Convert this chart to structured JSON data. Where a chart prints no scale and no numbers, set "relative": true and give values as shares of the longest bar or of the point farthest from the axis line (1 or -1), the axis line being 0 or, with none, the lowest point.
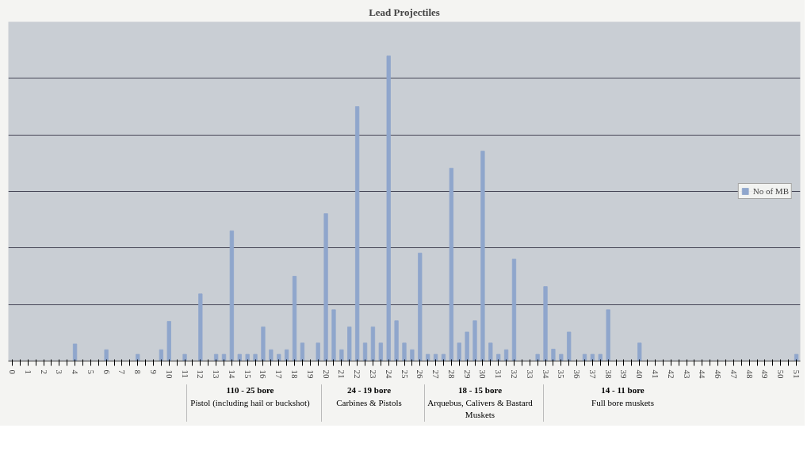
{
  "chart_data": {
    "type": "bar",
    "title": "Lead Projectiles",
    "relative": true,
    "grid": "y",
    "legend": "right",
    "categories": [
      "0",
      null,
      "1",
      null,
      "2",
      null,
      "3",
      null,
      "4",
      null,
      "5",
      null,
      "6",
      null,
      "7",
      null,
      "8",
      null,
      "9",
      null,
      "10",
      null,
      "11",
      null,
      "12",
      null,
      "13",
      null,
      "14",
      null,
      "15",
      null,
      "16",
      null,
      "17",
      null,
      "18",
      null,
      "19",
      null,
      "20",
      null,
      "21",
      null,
      "22",
      null,
      "23",
      null,
      "24",
      null,
      "25",
      null,
      "26",
      null,
      "27",
      null,
      "28",
      null,
      "29",
      null,
      "30",
      null,
      "31",
      null,
      "32",
      null,
      "33",
      null,
      "34",
      null,
      "35",
      null,
      "36",
      null,
      "37",
      null,
      "38",
      null,
      "39",
      null,
      "40",
      null,
      "41",
      null,
      "42",
      null,
      "43",
      null,
      "44",
      null,
      "46",
      null,
      "47",
      null,
      "48",
      null,
      "49",
      null,
      "50",
      null,
      "51"
    ],
    "series": [
      {
        "name": "No of MB",
        "color": "#8fa6cc",
        "values": [
          0,
          0,
          0,
          0,
          0,
          0,
          0,
          0,
          0.056,
          0,
          0,
          0,
          0.037,
          0,
          0,
          0,
          0.022,
          0,
          0,
          0.037,
          0.13,
          0,
          0.022,
          0,
          0.22,
          0,
          0.022,
          0.022,
          0.427,
          0.022,
          0.022,
          0.022,
          0.112,
          0.037,
          0.022,
          0.037,
          0.278,
          0.059,
          0,
          0.059,
          0.483,
          0.168,
          0.037,
          0.112,
          0.834,
          0.059,
          0.112,
          0.059,
          1,
          0.132,
          0.059,
          0.037,
          0.354,
          0.022,
          0.022,
          0.022,
          0.632,
          0.059,
          0.095,
          0.132,
          0.688,
          0.059,
          0.022,
          0.037,
          0.334,
          0,
          0,
          0.022,
          0.244,
          0.039,
          0.022,
          0.095,
          0,
          0.022,
          0.022,
          0.022,
          0.168,
          0,
          0,
          0,
          0.059,
          0,
          0,
          0,
          0,
          0,
          0,
          0,
          0,
          0,
          0,
          0,
          0,
          0,
          0,
          0,
          0,
          0,
          0,
          0,
          0.022
        ]
      }
    ],
    "annotations": [
      "110 - 25 bore",
      "Pistol (including hail or buckshot)",
      "24 - 19 bore",
      "Carbines & Pistols",
      "18 - 15 bore",
      "Arquebus, Calivers & Bastard Muskets",
      "14 - 11 bore",
      "Full bore muskets"
    ]
  }
}
